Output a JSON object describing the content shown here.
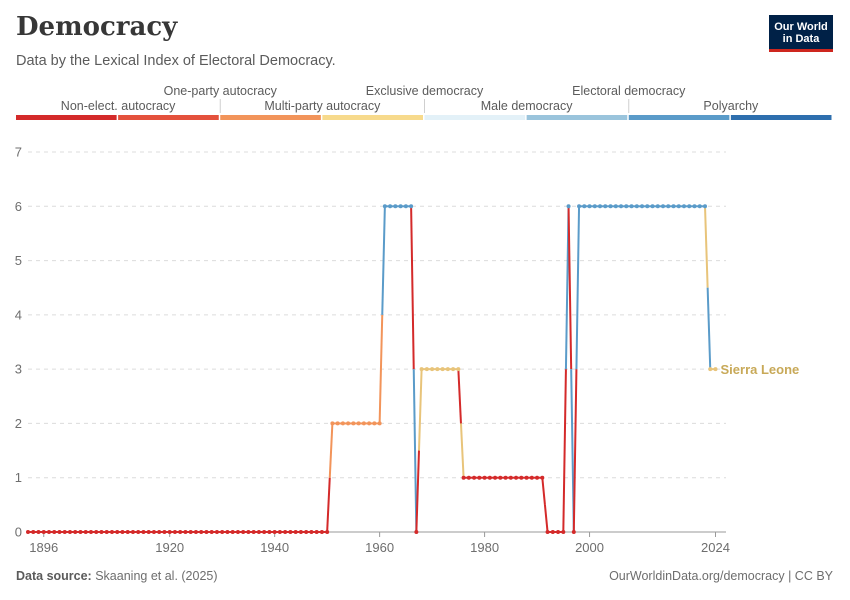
{
  "header": {
    "title": "Democracy",
    "subtitle": "Data by the Lexical Index of Electoral Democracy.",
    "logo_line1": "Our World",
    "logo_line2": "in Data"
  },
  "footer": {
    "source_label": "Data source:",
    "source_text": "Skaaning et al. (2025)",
    "credit": "OurWorldinData.org/democracy | CC BY"
  },
  "legend": {
    "categories": [
      {
        "label": "Non-elect. autocracy",
        "color": "#d42a2a",
        "row": 1
      },
      {
        "label": "One-party autocracy",
        "color": "#e4513c",
        "row": 0
      },
      {
        "label": "Multi-party autocracy",
        "color": "#f2945a",
        "row": 1
      },
      {
        "label": "Exclusive democracy",
        "color": "#f7da8c",
        "row": 0
      },
      {
        "label": "Male democracy",
        "color": "#e3f1f8",
        "row": 1
      },
      {
        "label": "Electoral democracy",
        "color": "#9ac4dc",
        "row": 0
      },
      {
        "label": "Polyarchy",
        "color": "#5a9bc9",
        "row": 1
      }
    ],
    "extra_color": "#2e6fae"
  },
  "chart_data": {
    "type": "line",
    "x_ticks": [
      1896,
      1920,
      1940,
      1960,
      1980,
      2000,
      2024
    ],
    "y_ticks": [
      0,
      1,
      2,
      3,
      4,
      5,
      6,
      7
    ],
    "xlim": [
      1893,
      2026
    ],
    "ylim": [
      0,
      7
    ],
    "grid": true,
    "series": [
      {
        "name": "Sierra Leone",
        "label_color": "#c8a958",
        "x_start": 1893,
        "values": [
          0,
          0,
          0,
          0,
          0,
          0,
          0,
          0,
          0,
          0,
          0,
          0,
          0,
          0,
          0,
          0,
          0,
          0,
          0,
          0,
          0,
          0,
          0,
          0,
          0,
          0,
          0,
          0,
          0,
          0,
          0,
          0,
          0,
          0,
          0,
          0,
          0,
          0,
          0,
          0,
          0,
          0,
          0,
          0,
          0,
          0,
          0,
          0,
          0,
          0,
          0,
          0,
          0,
          0,
          0,
          0,
          0,
          0,
          2,
          2,
          2,
          2,
          2,
          2,
          2,
          2,
          2,
          2,
          6,
          6,
          6,
          6,
          6,
          6,
          0,
          3,
          3,
          3,
          3,
          3,
          3,
          3,
          3,
          1,
          1,
          1,
          1,
          1,
          1,
          1,
          1,
          1,
          1,
          1,
          1,
          1,
          1,
          1,
          1,
          0,
          0,
          0,
          0,
          6,
          0,
          6,
          6,
          6,
          6,
          6,
          6,
          6,
          6,
          6,
          6,
          6,
          6,
          6,
          6,
          6,
          6,
          6,
          6,
          6,
          6,
          6,
          6,
          6,
          6,
          6,
          3,
          3
        ]
      }
    ]
  }
}
